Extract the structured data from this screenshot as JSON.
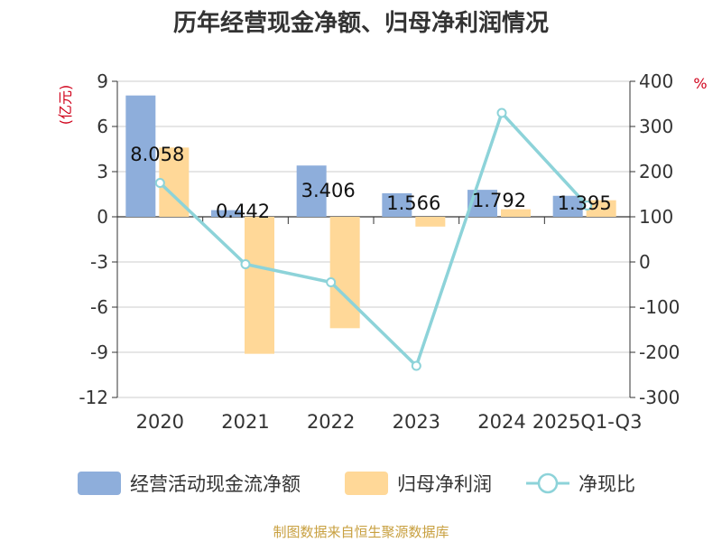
{
  "chart_data": {
    "type": "bar",
    "title": "历年经营现金净额、归母净利润情况",
    "categories": [
      "2020",
      "2021",
      "2022",
      "2023",
      "2024",
      "2025Q1-Q3"
    ],
    "y_left": {
      "unit": "(亿元)",
      "ylim": [
        -12,
        9
      ],
      "ticks": [
        9,
        6,
        3,
        0,
        -3,
        -6,
        -9,
        -12
      ]
    },
    "y_right": {
      "unit": "%",
      "ylim": [
        -300,
        400
      ],
      "ticks": [
        400,
        300,
        200,
        100,
        0,
        -100,
        -200,
        -300
      ]
    },
    "series": [
      {
        "name": "经营活动现金流净额",
        "type": "bar",
        "axis": "left",
        "color": "#8eaedb",
        "values": [
          8.058,
          0.442,
          3.406,
          1.566,
          1.792,
          1.395
        ],
        "labels": [
          "8.058",
          "0.442",
          "3.406",
          "1.566",
          "1.792",
          "1.395"
        ]
      },
      {
        "name": "归母净利润",
        "type": "bar",
        "axis": "left",
        "color": "#ffd898",
        "values": [
          4.6,
          -9.1,
          -7.4,
          -0.65,
          0.5,
          1.1
        ]
      },
      {
        "name": "净现比",
        "type": "line",
        "axis": "right",
        "color": "#8dd3d9",
        "values": [
          175,
          -5,
          -45,
          -230,
          330,
          125
        ]
      }
    ],
    "legend_position": "bottom",
    "grid": true
  },
  "source": "制图数据来自恒生聚源数据库"
}
